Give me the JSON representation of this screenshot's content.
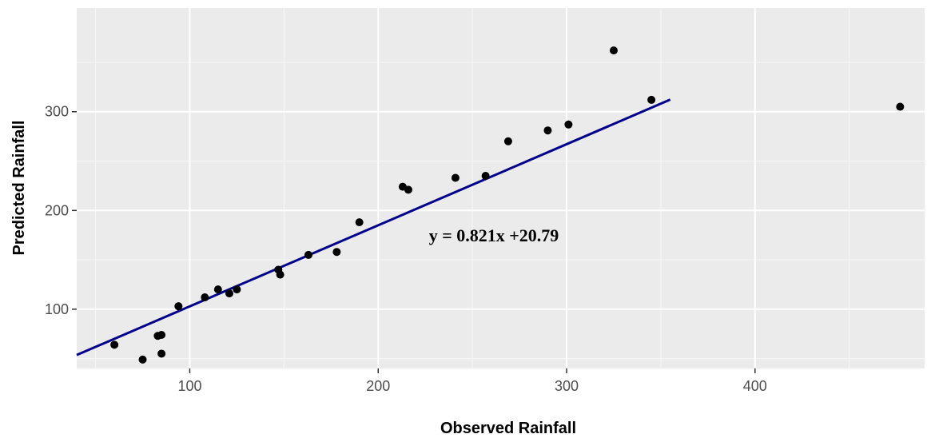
{
  "chart_data": {
    "type": "scatter",
    "xlabel": "Observed Rainfall",
    "ylabel": "Predicted Rainfall",
    "xlim": [
      40,
      490
    ],
    "ylim": [
      40,
      405
    ],
    "x_ticks": [
      100,
      200,
      300,
      400
    ],
    "y_ticks": [
      100,
      200,
      300
    ],
    "grid": true,
    "annotation": "y = 0.821x +20.79",
    "points": [
      [
        60,
        64
      ],
      [
        75,
        49
      ],
      [
        83,
        73
      ],
      [
        85,
        74
      ],
      [
        85,
        55
      ],
      [
        94,
        103
      ],
      [
        108,
        112
      ],
      [
        115,
        120
      ],
      [
        121,
        116
      ],
      [
        125,
        120
      ],
      [
        147,
        140
      ],
      [
        148,
        135
      ],
      [
        163,
        155
      ],
      [
        178,
        158
      ],
      [
        190,
        188
      ],
      [
        213,
        224
      ],
      [
        216,
        221
      ],
      [
        241,
        233
      ],
      [
        257,
        235
      ],
      [
        269,
        270
      ],
      [
        290,
        281
      ],
      [
        301,
        287
      ],
      [
        325,
        362
      ],
      [
        345,
        312
      ],
      [
        477,
        305
      ]
    ],
    "fit_line": {
      "x_range": [
        40,
        355
      ],
      "color": "#00008b"
    }
  }
}
